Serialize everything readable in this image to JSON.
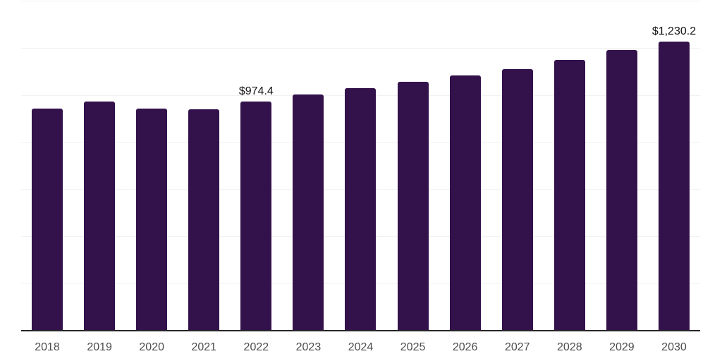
{
  "chart_data": {
    "type": "bar",
    "title": "",
    "xlabel": "",
    "ylabel": "",
    "categories": [
      "2018",
      "2019",
      "2020",
      "2021",
      "2022",
      "2023",
      "2024",
      "2025",
      "2026",
      "2027",
      "2028",
      "2029",
      "2030"
    ],
    "values": [
      945,
      975,
      944,
      942,
      974.4,
      1006,
      1033,
      1059,
      1086,
      1112,
      1151,
      1194,
      1230.2
    ],
    "value_labels": [
      null,
      null,
      null,
      null,
      "$974.4",
      null,
      null,
      null,
      null,
      null,
      null,
      null,
      "$1,230.2"
    ],
    "ylim": [
      0,
      1400
    ],
    "gridline_step": 200,
    "grid": "horizontal",
    "legend": "none",
    "colors": {
      "bar": "#33124b",
      "gridline": "#f2f2f2",
      "axis_line": "#262626",
      "tick_label": "#4d4d4d",
      "data_label": "#141414",
      "background": "#ffffff"
    }
  }
}
